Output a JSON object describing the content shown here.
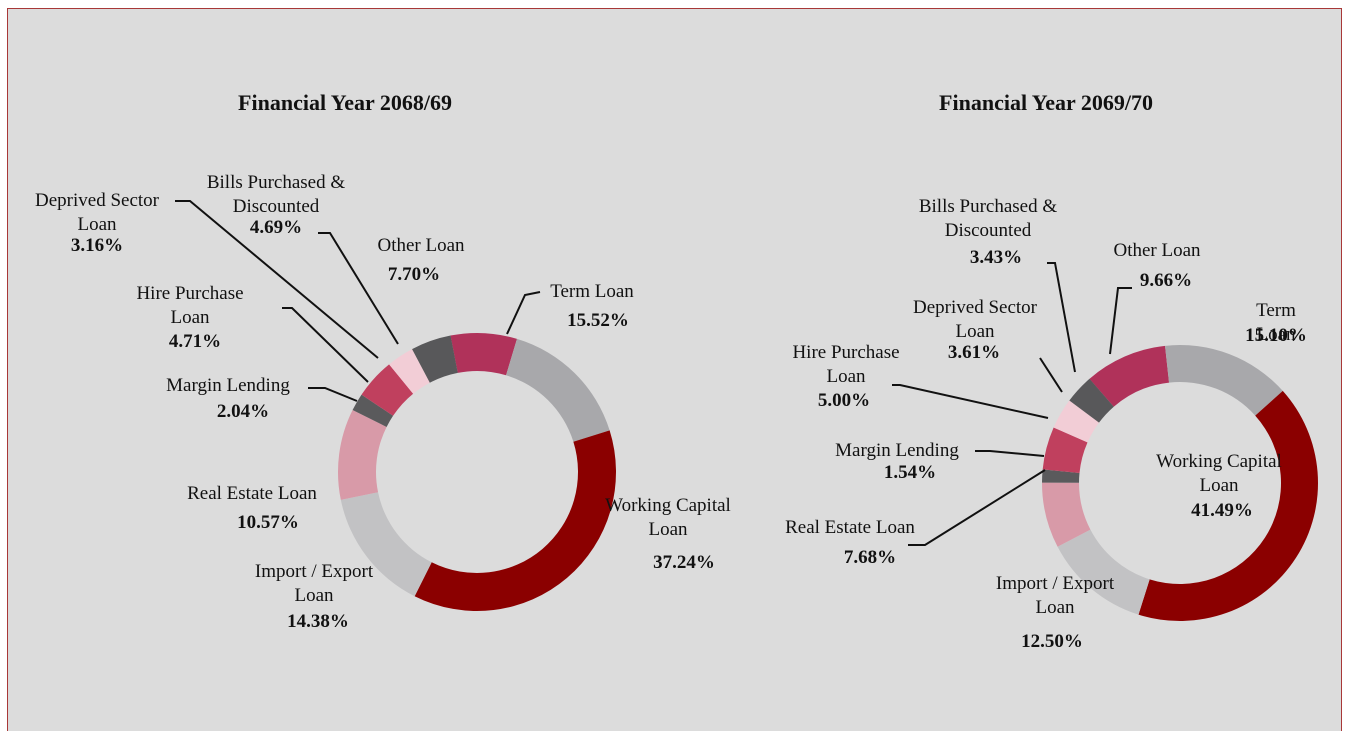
{
  "chart_data": [
    {
      "type": "pie",
      "title": "Financial Year 2068/69",
      "categories": [
        "Other Loan",
        "Term Loan",
        "Working Capital Loan",
        "Import / Export Loan",
        "Real Estate Loan",
        "Margin Lending",
        "Hire Purchase Loan",
        "Deprived Sector Loan",
        "Bills Purchased & Discounted"
      ],
      "values": [
        7.7,
        15.52,
        37.24,
        14.38,
        10.57,
        2.04,
        4.71,
        3.16,
        4.69
      ],
      "value_labels": [
        "7.70%",
        "15.52%",
        "37.24%",
        "14.38%",
        "10.57%",
        "2.04%",
        "4.71%",
        "3.16%",
        "4.69%"
      ],
      "colors": [
        "#b0325a",
        "#a8a8ab",
        "#8b0000",
        "#c2c2c4",
        "#d89aa8",
        "#5a5a5c",
        "#c0405e",
        "#f2cdd6",
        "#58585a"
      ]
    },
    {
      "type": "pie",
      "title": "Financial Year 2069/70",
      "categories": [
        "Other Loan",
        "Term Loan",
        "Working Capital Loan",
        "Import / Export Loan",
        "Real Estate Loan",
        "Margin Lending",
        "Hire Purchase Loan",
        "Deprived Sector Loan",
        "Bills Purchased & Discounted"
      ],
      "values": [
        9.66,
        15.1,
        41.49,
        12.5,
        7.68,
        1.54,
        5.0,
        3.61,
        3.43
      ],
      "value_labels": [
        "9.66%",
        "15.10%",
        "41.49%",
        "12.50%",
        "7.68%",
        "1.54%",
        "5.00%",
        "3.61%",
        "3.43%"
      ],
      "colors": [
        "#b0325a",
        "#a8a8ab",
        "#8b0000",
        "#c2c2c4",
        "#d89aa8",
        "#5a5a5c",
        "#c0405e",
        "#f2cdd6",
        "#58585a"
      ]
    }
  ]
}
